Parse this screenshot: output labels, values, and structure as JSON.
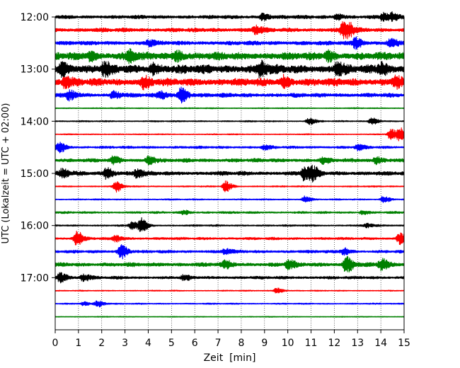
{
  "chart_data": {
    "type": "line",
    "xlabel": "Zeit  [min]",
    "ylabel": "UTC (Lokalzeit = UTC + 02:00)",
    "xlim": [
      0,
      15
    ],
    "x_ticks": [
      0,
      1,
      2,
      3,
      4,
      5,
      6,
      7,
      8,
      9,
      10,
      11,
      12,
      13,
      14,
      15
    ],
    "x_grid": "dotted vertical lines at every minute",
    "ylim": [
      "12:00",
      "18:00"
    ],
    "trace_interval_min": 15,
    "y_ticks": [
      "12:00",
      "13:00",
      "14:00",
      "15:00",
      "16:00",
      "17:00"
    ],
    "color_cycle": [
      "#000000",
      "#ff0000",
      "#0000ff",
      "#008000"
    ],
    "traces": [
      {
        "start": "12:00",
        "color": "#000000",
        "base": 0.3,
        "events": [
          {
            "min": 8.9,
            "amp": 0.5
          },
          {
            "min": 12.1,
            "amp": 0.45
          },
          {
            "min": 14.1,
            "amp": 0.55
          },
          {
            "min": 14.5,
            "amp": 0.5
          }
        ]
      },
      {
        "start": "12:15",
        "color": "#ff0000",
        "base": 0.35,
        "events": [
          {
            "min": 8.6,
            "amp": 0.6
          },
          {
            "min": 12.5,
            "amp": 1.3
          },
          {
            "min": 12.35,
            "amp": 0.9
          }
        ]
      },
      {
        "start": "12:30",
        "color": "#0000ff",
        "base": 0.35,
        "events": [
          {
            "min": 4.0,
            "amp": 0.4
          },
          {
            "min": 12.9,
            "amp": 0.8
          },
          {
            "min": 14.4,
            "amp": 0.6
          }
        ]
      },
      {
        "start": "12:45",
        "color": "#008000",
        "base": 0.65,
        "events": [
          {
            "min": 1.5,
            "amp": 0.6
          },
          {
            "min": 3.2,
            "amp": 0.7
          },
          {
            "min": 5.2,
            "amp": 0.7
          },
          {
            "min": 11.7,
            "amp": 0.6
          }
        ]
      },
      {
        "start": "13:00",
        "color": "#000000",
        "base": 0.75,
        "events": [
          {
            "min": 0.3,
            "amp": 0.9
          },
          {
            "min": 2.1,
            "amp": 0.7
          },
          {
            "min": 4.2,
            "amp": 0.7
          },
          {
            "min": 8.8,
            "amp": 1.0
          },
          {
            "min": 12.1,
            "amp": 0.8
          },
          {
            "min": 14.0,
            "amp": 0.8
          }
        ]
      },
      {
        "start": "13:15",
        "color": "#ff0000",
        "base": 0.65,
        "events": [
          {
            "min": 0.4,
            "amp": 0.7
          },
          {
            "min": 3.8,
            "amp": 0.7
          },
          {
            "min": 9.8,
            "amp": 0.8
          },
          {
            "min": 14.6,
            "amp": 0.7
          }
        ]
      },
      {
        "start": "13:30",
        "color": "#0000ff",
        "base": 0.35,
        "events": [
          {
            "min": 0.6,
            "amp": 0.7
          },
          {
            "min": 2.5,
            "amp": 0.6
          },
          {
            "min": 4.5,
            "amp": 0.6
          },
          {
            "min": 5.4,
            "amp": 1.1
          }
        ]
      },
      {
        "start": "13:45",
        "color": "#008000",
        "base": 0.1,
        "events": []
      },
      {
        "start": "14:00",
        "color": "#000000",
        "base": 0.12,
        "events": [
          {
            "min": 10.9,
            "amp": 0.5
          },
          {
            "min": 13.6,
            "amp": 0.5
          }
        ]
      },
      {
        "start": "14:15",
        "color": "#ff0000",
        "base": 0.1,
        "events": [
          {
            "min": 14.4,
            "amp": 0.8
          },
          {
            "min": 14.8,
            "amp": 0.9
          }
        ]
      },
      {
        "start": "14:30",
        "color": "#0000ff",
        "base": 0.22,
        "events": [
          {
            "min": 0.15,
            "amp": 0.8
          },
          {
            "min": 9.0,
            "amp": 0.3
          },
          {
            "min": 13.0,
            "amp": 0.4
          }
        ]
      },
      {
        "start": "14:45",
        "color": "#008000",
        "base": 0.32,
        "events": [
          {
            "min": 2.5,
            "amp": 0.5
          },
          {
            "min": 4.0,
            "amp": 0.6
          },
          {
            "min": 11.5,
            "amp": 0.4
          },
          {
            "min": 13.8,
            "amp": 0.5
          }
        ]
      },
      {
        "start": "15:00",
        "color": "#000000",
        "base": 0.35,
        "events": [
          {
            "min": 0.3,
            "amp": 0.6
          },
          {
            "min": 2.2,
            "amp": 0.8
          },
          {
            "min": 3.5,
            "amp": 0.6
          },
          {
            "min": 10.7,
            "amp": 1.2
          },
          {
            "min": 11.1,
            "amp": 0.8
          }
        ]
      },
      {
        "start": "15:15",
        "color": "#ff0000",
        "base": 0.12,
        "events": [
          {
            "min": 2.6,
            "amp": 0.8
          },
          {
            "min": 7.3,
            "amp": 0.8
          }
        ]
      },
      {
        "start": "15:30",
        "color": "#0000ff",
        "base": 0.12,
        "events": [
          {
            "min": 10.7,
            "amp": 0.5
          },
          {
            "min": 14.1,
            "amp": 0.5
          }
        ]
      },
      {
        "start": "15:45",
        "color": "#008000",
        "base": 0.18,
        "events": [
          {
            "min": 5.5,
            "amp": 0.3
          },
          {
            "min": 13.2,
            "amp": 0.3
          }
        ]
      },
      {
        "start": "16:00",
        "color": "#000000",
        "base": 0.15,
        "events": [
          {
            "min": 3.7,
            "amp": 1.0
          },
          {
            "min": 3.3,
            "amp": 0.6
          },
          {
            "min": 13.4,
            "amp": 0.3
          }
        ]
      },
      {
        "start": "16:15",
        "color": "#ff0000",
        "base": 0.22,
        "events": [
          {
            "min": 0.9,
            "amp": 1.2
          },
          {
            "min": 2.6,
            "amp": 0.4
          },
          {
            "min": 14.8,
            "amp": 0.9
          }
        ]
      },
      {
        "start": "16:30",
        "color": "#0000ff",
        "base": 0.25,
        "events": [
          {
            "min": 2.8,
            "amp": 1.1
          },
          {
            "min": 7.3,
            "amp": 0.4
          },
          {
            "min": 12.4,
            "amp": 0.5
          }
        ]
      },
      {
        "start": "16:45",
        "color": "#008000",
        "base": 0.35,
        "events": [
          {
            "min": 7.3,
            "amp": 0.5
          },
          {
            "min": 10.0,
            "amp": 0.6
          },
          {
            "min": 12.5,
            "amp": 1.3
          },
          {
            "min": 14.0,
            "amp": 0.8
          }
        ]
      },
      {
        "start": "17:00",
        "color": "#000000",
        "base": 0.25,
        "events": [
          {
            "min": 0.2,
            "amp": 0.8
          },
          {
            "min": 1.2,
            "amp": 0.5
          },
          {
            "min": 5.5,
            "amp": 0.3
          }
        ]
      },
      {
        "start": "17:15",
        "color": "#ff0000",
        "base": 0.1,
        "events": [
          {
            "min": 9.5,
            "amp": 0.4
          }
        ]
      },
      {
        "start": "17:30",
        "color": "#0000ff",
        "base": 0.12,
        "events": [
          {
            "min": 1.8,
            "amp": 0.5
          },
          {
            "min": 1.2,
            "amp": 0.3
          }
        ]
      },
      {
        "start": "17:45",
        "color": "#008000",
        "base": 0.08,
        "events": []
      }
    ]
  }
}
